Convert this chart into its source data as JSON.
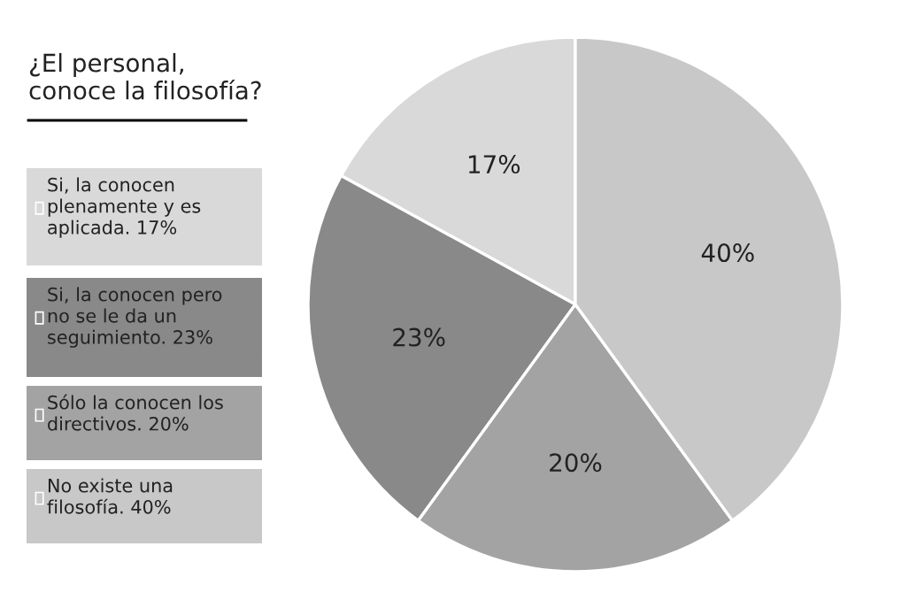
{
  "chart_data": {
    "type": "pie",
    "title": "¿El personal,\nconoce la filosofía?",
    "categories": [
      "Si, la conocen\nplenamente y es\naplicada. 17%",
      "Si, la conocen pero\nno se le da un\nseguimiento. 23%",
      "Sólo la conocen los\ndirectivos. 20%",
      "No existe una\nfilosofía. 40%"
    ],
    "values": [
      17,
      23,
      20,
      40
    ],
    "value_labels": [
      "17%",
      "23%",
      "20%",
      "40%"
    ],
    "colors": [
      "#d9d9d9",
      "#898989",
      "#a3a3a3",
      "#c8c8c8"
    ],
    "legend": "left"
  }
}
